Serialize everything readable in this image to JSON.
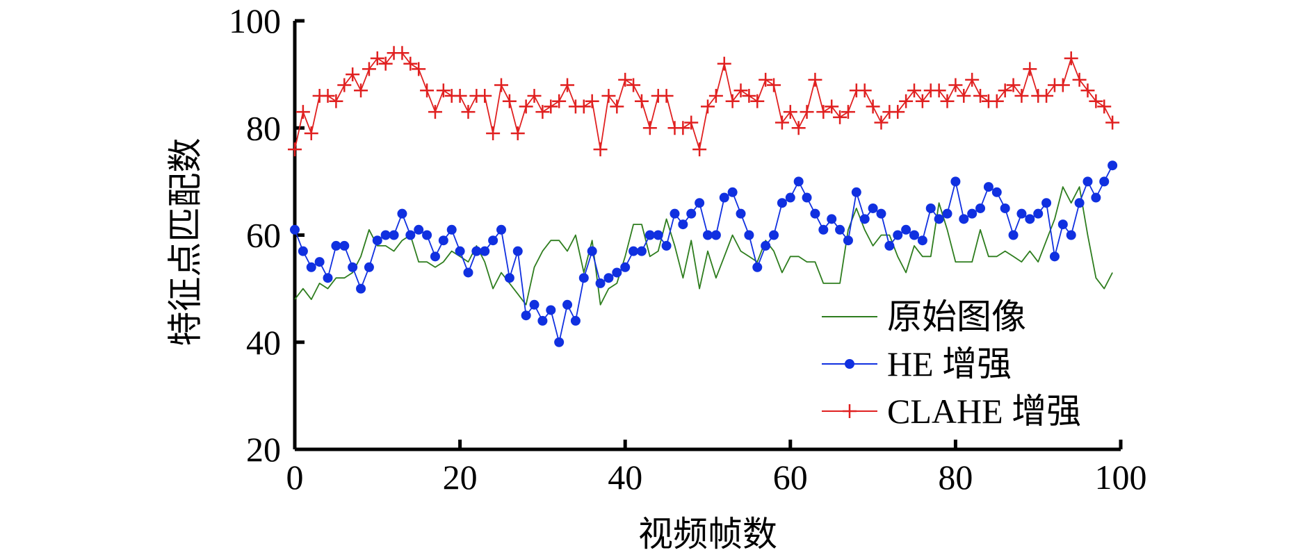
{
  "chart_data": {
    "type": "line",
    "title": "",
    "xlabel": "视频帧数",
    "ylabel": "特征点匹配数",
    "xlim": [
      0,
      100
    ],
    "ylim": [
      20,
      100
    ],
    "xticks": [
      0,
      20,
      40,
      60,
      80,
      100
    ],
    "yticks": [
      20,
      40,
      60,
      80,
      100
    ],
    "grid": false,
    "legend_position": "bottom-right",
    "series": [
      {
        "name": "原始图像",
        "color": "#2e7d1e",
        "marker": "none",
        "x": [
          0,
          1,
          2,
          3,
          4,
          5,
          6,
          7,
          8,
          9,
          10,
          11,
          12,
          13,
          14,
          15,
          16,
          17,
          18,
          19,
          20,
          21,
          22,
          23,
          24,
          25,
          26,
          27,
          28,
          29,
          30,
          31,
          32,
          33,
          34,
          35,
          36,
          37,
          38,
          39,
          40,
          41,
          42,
          43,
          44,
          45,
          46,
          47,
          48,
          49,
          50,
          51,
          52,
          53,
          54,
          55,
          56,
          57,
          58,
          59,
          60,
          61,
          62,
          63,
          64,
          65,
          66,
          67,
          68,
          69,
          70,
          71,
          72,
          73,
          74,
          75,
          76,
          77,
          78,
          79,
          80,
          81,
          82,
          83,
          84,
          85,
          86,
          87,
          88,
          89,
          90,
          91,
          92,
          93,
          94,
          95,
          96,
          97,
          98,
          99
        ],
        "values": [
          48,
          50,
          48,
          51,
          50,
          52,
          52,
          53,
          56,
          61,
          58,
          58,
          57,
          59,
          60,
          55,
          55,
          54,
          55,
          57,
          56,
          55,
          58,
          55,
          50,
          53,
          51,
          49,
          47,
          54,
          57,
          59,
          59,
          57,
          60,
          53,
          59,
          47,
          50,
          51,
          56,
          62,
          62,
          56,
          57,
          63,
          58,
          52,
          59,
          50,
          57,
          52,
          56,
          60,
          57,
          56,
          55,
          59,
          57,
          53,
          56,
          56,
          55,
          55,
          51,
          51,
          51,
          61,
          65,
          61,
          58,
          60,
          60,
          56,
          53,
          58,
          56,
          56,
          66,
          61,
          55,
          55,
          55,
          61,
          56,
          56,
          57,
          56,
          55,
          57,
          55,
          59,
          63,
          69,
          66,
          69,
          60,
          52,
          50,
          53
        ]
      },
      {
        "name": "HE 增强",
        "color": "#1030e0",
        "marker": "circle",
        "x": [
          0,
          1,
          2,
          3,
          4,
          5,
          6,
          7,
          8,
          9,
          10,
          11,
          12,
          13,
          14,
          15,
          16,
          17,
          18,
          19,
          20,
          21,
          22,
          23,
          24,
          25,
          26,
          27,
          28,
          29,
          30,
          31,
          32,
          33,
          34,
          35,
          36,
          37,
          38,
          39,
          40,
          41,
          42,
          43,
          44,
          45,
          46,
          47,
          48,
          49,
          50,
          51,
          52,
          53,
          54,
          55,
          56,
          57,
          58,
          59,
          60,
          61,
          62,
          63,
          64,
          65,
          66,
          67,
          68,
          69,
          70,
          71,
          72,
          73,
          74,
          75,
          76,
          77,
          78,
          79,
          80,
          81,
          82,
          83,
          84,
          85,
          86,
          87,
          88,
          89,
          90,
          91,
          92,
          93,
          94,
          95,
          96,
          97,
          98,
          99
        ],
        "values": [
          61,
          57,
          54,
          55,
          52,
          58,
          58,
          54,
          50,
          54,
          59,
          60,
          60,
          64,
          60,
          61,
          60,
          56,
          59,
          61,
          57,
          53,
          57,
          57,
          59,
          61,
          52,
          57,
          45,
          47,
          44,
          46,
          40,
          47,
          44,
          52,
          57,
          51,
          52,
          53,
          54,
          57,
          57,
          60,
          60,
          58,
          64,
          62,
          64,
          66,
          60,
          60,
          67,
          68,
          64,
          60,
          54,
          58,
          60,
          66,
          67,
          70,
          67,
          64,
          61,
          63,
          61,
          59,
          68,
          63,
          65,
          64,
          58,
          60,
          61,
          60,
          59,
          65,
          63,
          64,
          70,
          63,
          64,
          65,
          69,
          68,
          65,
          60,
          64,
          63,
          64,
          66,
          56,
          62,
          60,
          66,
          70,
          67,
          70,
          73
        ]
      },
      {
        "name": "CLAHE 增强",
        "color": "#e02020",
        "marker": "plus",
        "x": [
          0,
          1,
          2,
          3,
          4,
          5,
          6,
          7,
          8,
          9,
          10,
          11,
          12,
          13,
          14,
          15,
          16,
          17,
          18,
          19,
          20,
          21,
          22,
          23,
          24,
          25,
          26,
          27,
          28,
          29,
          30,
          31,
          32,
          33,
          34,
          35,
          36,
          37,
          38,
          39,
          40,
          41,
          42,
          43,
          44,
          45,
          46,
          47,
          48,
          49,
          50,
          51,
          52,
          53,
          54,
          55,
          56,
          57,
          58,
          59,
          60,
          61,
          62,
          63,
          64,
          65,
          66,
          67,
          68,
          69,
          70,
          71,
          72,
          73,
          74,
          75,
          76,
          77,
          78,
          79,
          80,
          81,
          82,
          83,
          84,
          85,
          86,
          87,
          88,
          89,
          90,
          91,
          92,
          93,
          94,
          95,
          96,
          97,
          98,
          99
        ],
        "values": [
          76,
          83,
          79,
          86,
          86,
          85,
          88,
          90,
          87,
          91,
          93,
          92,
          94,
          94,
          92,
          91,
          87,
          83,
          87,
          86,
          86,
          83,
          86,
          86,
          79,
          88,
          85,
          79,
          84,
          86,
          83,
          84,
          85,
          88,
          84,
          84,
          85,
          76,
          86,
          84,
          89,
          88,
          85,
          80,
          86,
          86,
          80,
          80,
          81,
          76,
          84,
          86,
          92,
          85,
          87,
          86,
          85,
          89,
          88,
          81,
          83,
          80,
          83,
          89,
          83,
          84,
          82,
          83,
          87,
          87,
          84,
          81,
          83,
          83,
          85,
          87,
          85,
          87,
          87,
          85,
          88,
          86,
          89,
          86,
          85,
          85,
          87,
          88,
          86,
          91,
          86,
          86,
          88,
          88,
          93,
          89,
          87,
          85,
          84,
          81
        ]
      }
    ]
  }
}
